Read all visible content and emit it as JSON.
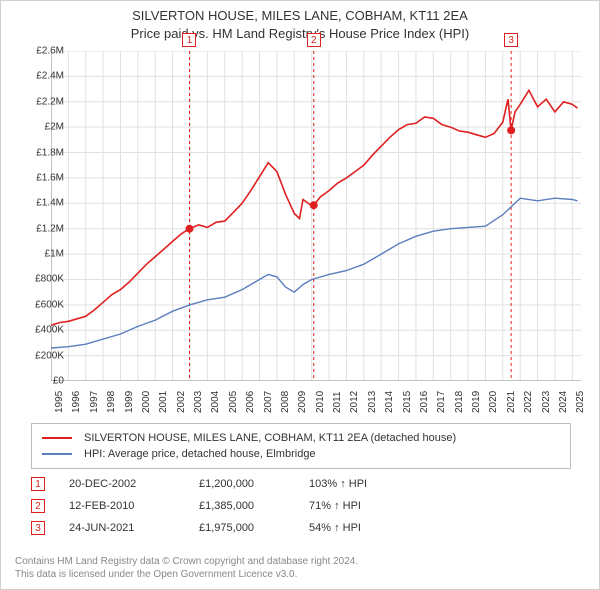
{
  "title": {
    "line1": "SILVERTON HOUSE, MILES LANE, COBHAM, KT11 2EA",
    "line2": "Price paid vs. HM Land Registry's House Price Index (HPI)"
  },
  "chart": {
    "type": "line",
    "background_color": "#ffffff",
    "grid_color": "#e0e0e0",
    "axis_color": "#888888",
    "label_fontsize": 10,
    "x_years": [
      1995,
      1996,
      1997,
      1998,
      1999,
      2000,
      2001,
      2002,
      2003,
      2004,
      2005,
      2006,
      2007,
      2008,
      2009,
      2010,
      2011,
      2012,
      2013,
      2014,
      2015,
      2016,
      2017,
      2018,
      2019,
      2020,
      2021,
      2022,
      2023,
      2024,
      2025
    ],
    "xlim": [
      1995,
      2025.5
    ],
    "ylim": [
      0,
      2600000
    ],
    "ytick_step": 200000,
    "ytick_labels": [
      "£0",
      "£200K",
      "£400K",
      "£600K",
      "£800K",
      "£1M",
      "£1.2M",
      "£1.4M",
      "£1.6M",
      "£1.8M",
      "£2M",
      "£2.2M",
      "£2.4M",
      "£2.6M"
    ],
    "series": [
      {
        "name": "SILVERTON HOUSE, MILES LANE, COBHAM, KT11 2EA (detached house)",
        "color": "#e02020",
        "line_width": 1.6,
        "data": [
          [
            1995,
            440000
          ],
          [
            1995.5,
            460000
          ],
          [
            1996,
            470000
          ],
          [
            1996.5,
            490000
          ],
          [
            1997,
            510000
          ],
          [
            1997.5,
            560000
          ],
          [
            1998,
            620000
          ],
          [
            1998.5,
            680000
          ],
          [
            1999,
            720000
          ],
          [
            1999.5,
            780000
          ],
          [
            2000,
            850000
          ],
          [
            2000.5,
            920000
          ],
          [
            2001,
            980000
          ],
          [
            2001.5,
            1040000
          ],
          [
            2002,
            1100000
          ],
          [
            2002.5,
            1160000
          ],
          [
            2002.97,
            1200000
          ],
          [
            2003.5,
            1230000
          ],
          [
            2004,
            1210000
          ],
          [
            2004.5,
            1250000
          ],
          [
            2005,
            1260000
          ],
          [
            2005.5,
            1330000
          ],
          [
            2006,
            1400000
          ],
          [
            2006.5,
            1500000
          ],
          [
            2007,
            1610000
          ],
          [
            2007.5,
            1720000
          ],
          [
            2008,
            1650000
          ],
          [
            2008.5,
            1470000
          ],
          [
            2009,
            1320000
          ],
          [
            2009.3,
            1280000
          ],
          [
            2009.5,
            1430000
          ],
          [
            2010,
            1380000
          ],
          [
            2010.12,
            1385000
          ],
          [
            2010.5,
            1450000
          ],
          [
            2011,
            1500000
          ],
          [
            2011.5,
            1560000
          ],
          [
            2012,
            1600000
          ],
          [
            2012.5,
            1650000
          ],
          [
            2013,
            1700000
          ],
          [
            2013.5,
            1780000
          ],
          [
            2014,
            1850000
          ],
          [
            2014.5,
            1920000
          ],
          [
            2015,
            1980000
          ],
          [
            2015.5,
            2020000
          ],
          [
            2016,
            2030000
          ],
          [
            2016.5,
            2080000
          ],
          [
            2017,
            2070000
          ],
          [
            2017.5,
            2020000
          ],
          [
            2018,
            2000000
          ],
          [
            2018.5,
            1970000
          ],
          [
            2019,
            1960000
          ],
          [
            2019.5,
            1940000
          ],
          [
            2020,
            1920000
          ],
          [
            2020.5,
            1950000
          ],
          [
            2021,
            2040000
          ],
          [
            2021.3,
            2220000
          ],
          [
            2021.48,
            1975000
          ],
          [
            2021.7,
            2120000
          ],
          [
            2022,
            2180000
          ],
          [
            2022.5,
            2290000
          ],
          [
            2023,
            2160000
          ],
          [
            2023.5,
            2220000
          ],
          [
            2024,
            2120000
          ],
          [
            2024.5,
            2200000
          ],
          [
            2025,
            2180000
          ],
          [
            2025.3,
            2150000
          ]
        ]
      },
      {
        "name": "HPI: Average price, detached house, Elmbridge",
        "color": "#5b7fbf",
        "line_width": 1.4,
        "data": [
          [
            1995,
            260000
          ],
          [
            1996,
            270000
          ],
          [
            1997,
            290000
          ],
          [
            1998,
            330000
          ],
          [
            1999,
            370000
          ],
          [
            2000,
            430000
          ],
          [
            2001,
            480000
          ],
          [
            2002,
            550000
          ],
          [
            2003,
            600000
          ],
          [
            2004,
            640000
          ],
          [
            2005,
            660000
          ],
          [
            2006,
            720000
          ],
          [
            2007,
            800000
          ],
          [
            2007.5,
            840000
          ],
          [
            2008,
            820000
          ],
          [
            2008.5,
            740000
          ],
          [
            2009,
            700000
          ],
          [
            2009.5,
            760000
          ],
          [
            2010,
            800000
          ],
          [
            2011,
            840000
          ],
          [
            2012,
            870000
          ],
          [
            2013,
            920000
          ],
          [
            2014,
            1000000
          ],
          [
            2015,
            1080000
          ],
          [
            2016,
            1140000
          ],
          [
            2017,
            1180000
          ],
          [
            2018,
            1200000
          ],
          [
            2019,
            1210000
          ],
          [
            2020,
            1220000
          ],
          [
            2021,
            1310000
          ],
          [
            2022,
            1440000
          ],
          [
            2023,
            1420000
          ],
          [
            2024,
            1440000
          ],
          [
            2025,
            1430000
          ],
          [
            2025.3,
            1420000
          ]
        ]
      }
    ],
    "event_markers": [
      {
        "num": "1",
        "x": 2002.97,
        "dash_color": "#e02020"
      },
      {
        "num": "2",
        "x": 2010.12,
        "dash_color": "#e02020"
      },
      {
        "num": "3",
        "x": 2021.48,
        "dash_color": "#e02020"
      }
    ],
    "point_markers": [
      {
        "x": 2002.97,
        "y": 1200000,
        "color": "#e02020"
      },
      {
        "x": 2010.12,
        "y": 1385000,
        "color": "#e02020"
      },
      {
        "x": 2021.48,
        "y": 1975000,
        "color": "#e02020"
      }
    ]
  },
  "legend": [
    {
      "color": "#e02020",
      "label": "SILVERTON HOUSE, MILES LANE, COBHAM, KT11 2EA (detached house)"
    },
    {
      "color": "#5b7fbf",
      "label": "HPI: Average price, detached house, Elmbridge"
    }
  ],
  "events": [
    {
      "num": "1",
      "date": "20-DEC-2002",
      "price": "£1,200,000",
      "hpi": "103% ↑ HPI"
    },
    {
      "num": "2",
      "date": "12-FEB-2010",
      "price": "£1,385,000",
      "hpi": "71% ↑ HPI"
    },
    {
      "num": "3",
      "date": "24-JUN-2021",
      "price": "£1,975,000",
      "hpi": "54% ↑ HPI"
    }
  ],
  "footer": {
    "line1": "Contains HM Land Registry data © Crown copyright and database right 2024.",
    "line2": "This data is licensed under the Open Government Licence v3.0."
  }
}
